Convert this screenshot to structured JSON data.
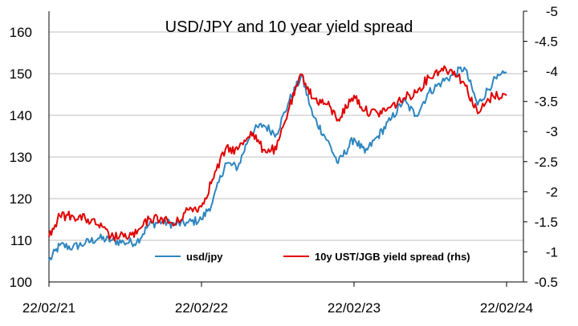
{
  "chart_data": {
    "type": "line",
    "title": "USD/JPY and 10 year yield spread",
    "x_ticks": [
      "22/02/21",
      "22/02/22",
      "22/02/23",
      "22/02/24"
    ],
    "x_range": [
      "2021-02-22",
      "2024-02-22"
    ],
    "y_left": {
      "min": 100,
      "max": 165,
      "ticks": [
        100,
        110,
        120,
        130,
        140,
        150,
        160
      ]
    },
    "y_right": {
      "min": -0.5,
      "max": -5,
      "inverted": true,
      "ticks": [
        -0.5,
        -1,
        -1.5,
        -2,
        -2.5,
        -3,
        -3.5,
        -4,
        -4.5,
        -5
      ]
    },
    "grid": true,
    "legend_position": "bottom-center",
    "series": [
      {
        "name": "usd/jpy",
        "axis": "left",
        "color": "#2E86C1",
        "dates": [
          "2021-02-22",
          "2021-03-20",
          "2021-04-20",
          "2021-05-20",
          "2021-06-20",
          "2021-07-20",
          "2021-08-20",
          "2021-09-20",
          "2021-10-20",
          "2021-11-20",
          "2021-12-20",
          "2022-01-20",
          "2022-02-22",
          "2022-03-20",
          "2022-04-20",
          "2022-05-20",
          "2022-06-20",
          "2022-07-20",
          "2022-08-20",
          "2022-09-20",
          "2022-10-20",
          "2022-11-15",
          "2022-12-20",
          "2023-01-15",
          "2023-02-22",
          "2023-03-20",
          "2023-04-20",
          "2023-05-20",
          "2023-06-20",
          "2023-07-20",
          "2023-08-20",
          "2023-09-20",
          "2023-10-20",
          "2023-11-13",
          "2023-12-15",
          "2024-01-20",
          "2024-02-22"
        ],
        "values": [
          105.0,
          108.8,
          108.3,
          109.3,
          110.5,
          110.0,
          109.5,
          109.6,
          113.8,
          114.5,
          113.8,
          114.2,
          115.0,
          119.0,
          128.5,
          127.5,
          136.0,
          137.7,
          135.5,
          143.5,
          149.5,
          140.0,
          134.0,
          128.5,
          134.5,
          131.0,
          135.0,
          138.8,
          143.5,
          140.0,
          145.5,
          148.0,
          149.9,
          151.5,
          142.5,
          148.0,
          150.2
        ]
      },
      {
        "name": "10y UST/JGB yield spread (rhs)",
        "axis": "right",
        "color": "#E00000",
        "dates": [
          "2021-02-22",
          "2021-03-20",
          "2021-04-20",
          "2021-05-20",
          "2021-06-20",
          "2021-07-20",
          "2021-08-20",
          "2021-09-20",
          "2021-10-20",
          "2021-11-20",
          "2021-12-20",
          "2022-01-20",
          "2022-02-22",
          "2022-03-20",
          "2022-04-20",
          "2022-05-20",
          "2022-06-20",
          "2022-07-20",
          "2022-08-20",
          "2022-09-20",
          "2022-10-20",
          "2022-11-15",
          "2022-12-20",
          "2023-01-15",
          "2023-02-22",
          "2023-03-20",
          "2023-04-20",
          "2023-05-20",
          "2023-06-20",
          "2023-07-20",
          "2023-08-20",
          "2023-09-20",
          "2023-10-20",
          "2023-11-13",
          "2023-12-15",
          "2024-01-20",
          "2024-02-22"
        ],
        "values": [
          -1.25,
          -1.6,
          -1.6,
          -1.55,
          -1.45,
          -1.25,
          -1.25,
          -1.3,
          -1.55,
          -1.55,
          -1.45,
          -1.7,
          -1.75,
          -2.2,
          -2.7,
          -2.7,
          -3.0,
          -2.7,
          -2.7,
          -3.4,
          -3.95,
          -3.55,
          -3.45,
          -3.2,
          -3.6,
          -3.35,
          -3.3,
          -3.4,
          -3.55,
          -3.65,
          -3.9,
          -4.05,
          -4.0,
          -3.8,
          -3.3,
          -3.6,
          -3.6
        ]
      }
    ]
  }
}
